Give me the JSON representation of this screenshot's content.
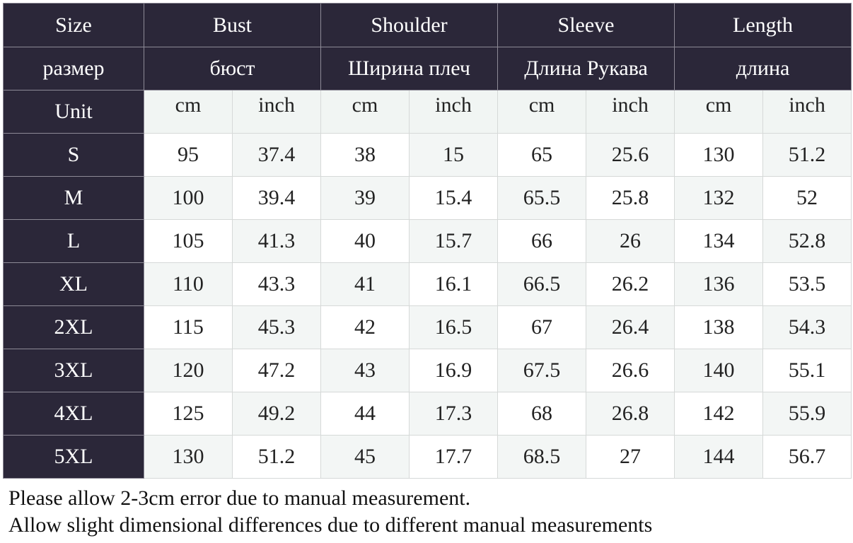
{
  "table": {
    "header": [
      "Size",
      "Bust",
      "Shoulder",
      "Sleeve",
      "Length"
    ],
    "header_ru": [
      "размер",
      "бюст",
      "Ширина плеч",
      "Длина Рукава",
      "длина"
    ],
    "unit_label": "Unit",
    "units": [
      "cm",
      "inch",
      "cm",
      "inch",
      "cm",
      "inch",
      "cm",
      "inch"
    ],
    "rows": [
      [
        "S",
        95,
        37.4,
        38,
        15,
        65,
        25.6,
        130,
        51.2
      ],
      [
        "M",
        100,
        39.4,
        39,
        15.4,
        65.5,
        25.8,
        132,
        52
      ],
      [
        "L",
        105,
        41.3,
        40,
        15.7,
        66,
        26,
        134,
        52.8
      ],
      [
        "XL",
        110,
        43.3,
        41,
        16.1,
        66.5,
        26.2,
        136,
        53.5
      ],
      [
        "2XL",
        115,
        45.3,
        42,
        16.5,
        67,
        26.4,
        138,
        54.3
      ],
      [
        "3XL",
        120,
        47.2,
        43,
        16.9,
        67.5,
        26.6,
        140,
        55.1
      ],
      [
        "4XL",
        125,
        49.2,
        44,
        17.3,
        68,
        26.8,
        142,
        55.9
      ],
      [
        "5XL",
        130,
        51.2,
        45,
        17.7,
        68.5,
        27,
        144,
        56.7
      ]
    ]
  },
  "notes": [
    "Please allow 2-3cm error due to manual measurement.",
    "Allow slight dimensional differences due to different manual measurements"
  ]
}
